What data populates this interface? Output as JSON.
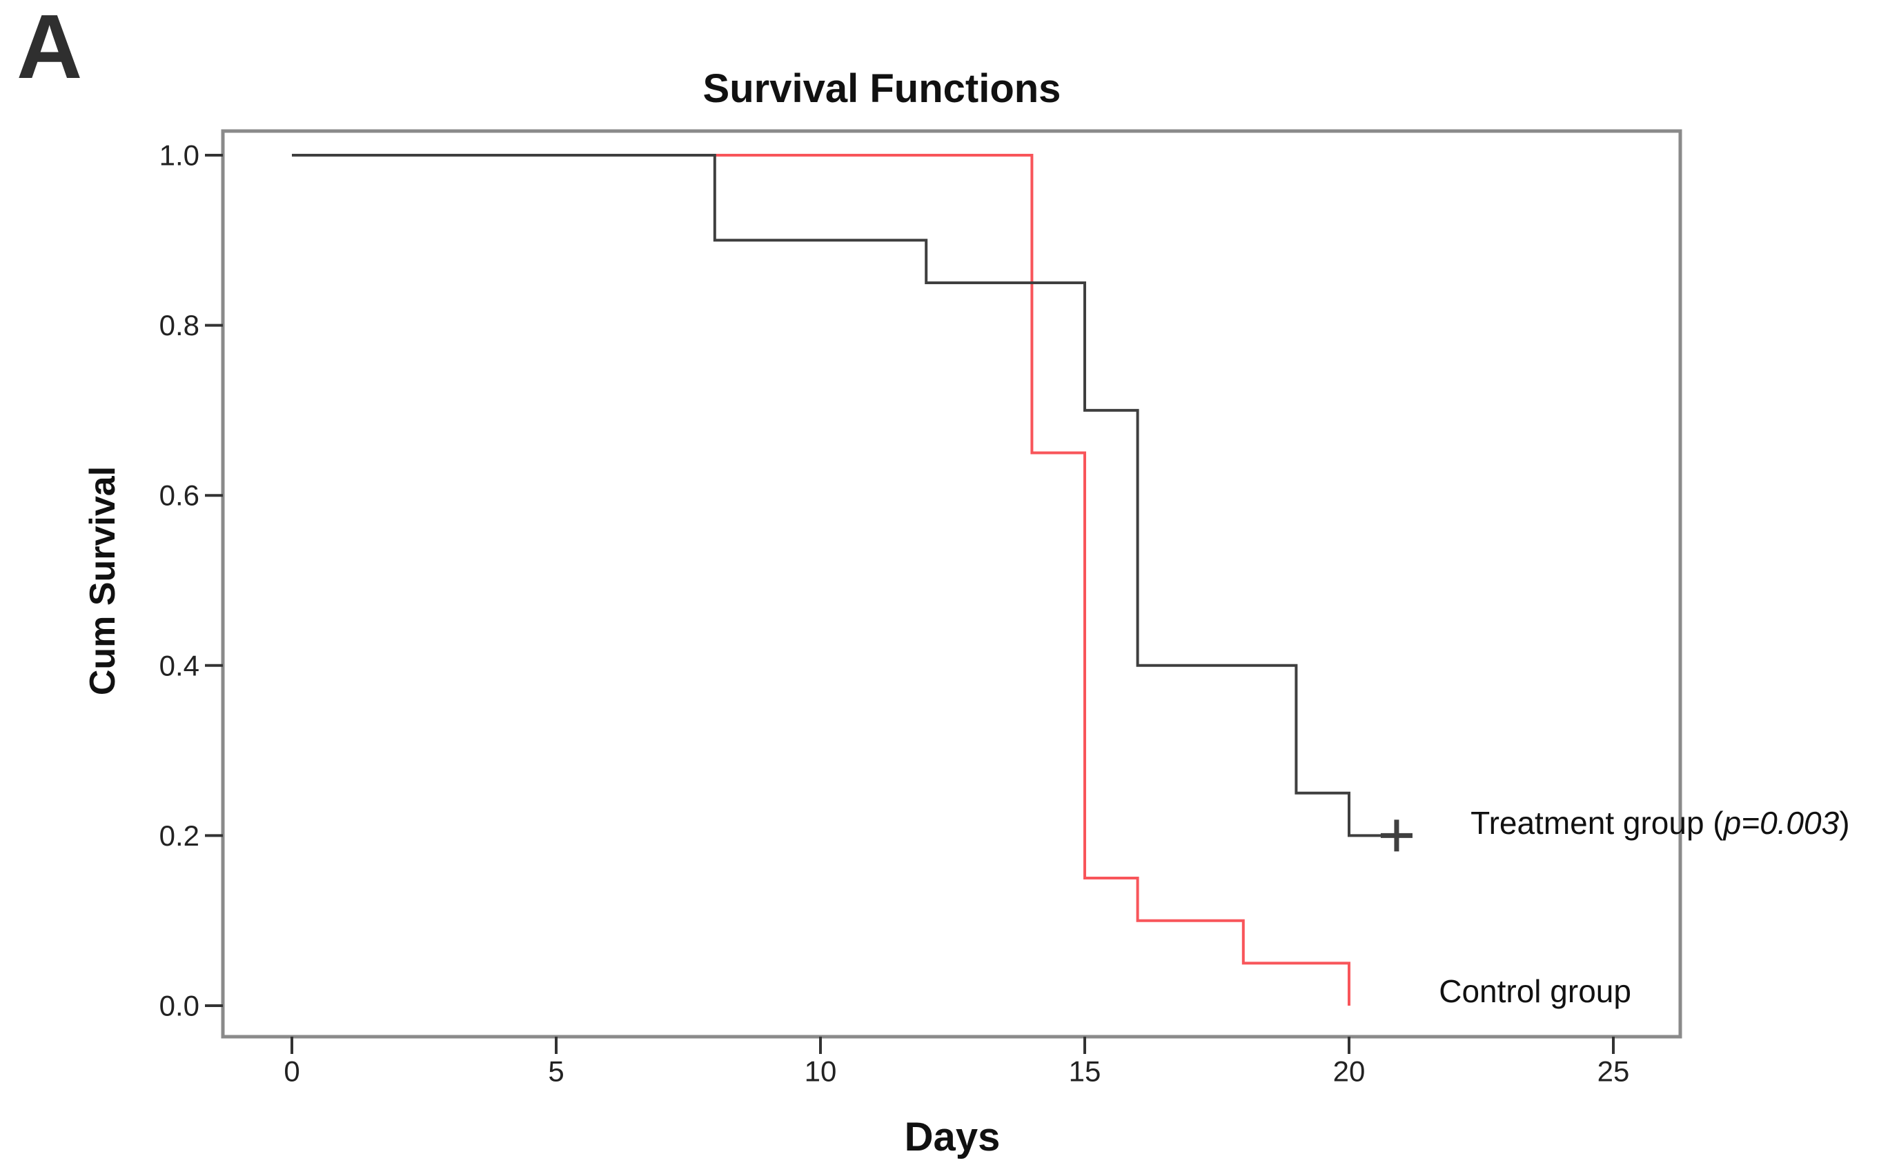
{
  "figure": {
    "panel_label": "A"
  },
  "chart_data": {
    "type": "line",
    "subtype": "kaplan-meier-step",
    "title": "Survival Functions",
    "xlabel": "Days",
    "ylabel": "Cum Survival",
    "xlim": [
      0,
      25
    ],
    "ylim": [
      0.0,
      1.0
    ],
    "x_ticks": [
      0,
      5,
      10,
      15,
      20,
      25
    ],
    "y_ticks": [
      "0.0",
      "0.2",
      "0.4",
      "0.6",
      "0.8",
      "1.0"
    ],
    "grid": false,
    "legend_position": "annotations-right",
    "colors": {
      "treatment": "#3f3f3f",
      "control": "#f8555a",
      "frame": "#8a8a8a",
      "tick": "#333333",
      "text": "#111111"
    },
    "series": [
      {
        "name": "Control group",
        "key": "control",
        "color": "#f8555a",
        "points": [
          [
            0,
            1.0
          ],
          [
            14,
            1.0
          ],
          [
            14,
            0.65
          ],
          [
            15,
            0.65
          ],
          [
            15,
            0.15
          ],
          [
            16,
            0.15
          ],
          [
            16,
            0.1
          ],
          [
            18,
            0.1
          ],
          [
            18,
            0.05
          ],
          [
            20,
            0.05
          ],
          [
            20,
            0.0
          ]
        ],
        "censored": []
      },
      {
        "name": "Treatment group",
        "key": "treatment",
        "color": "#3f3f3f",
        "points": [
          [
            0,
            1.0
          ],
          [
            8,
            1.0
          ],
          [
            8,
            0.9
          ],
          [
            12,
            0.9
          ],
          [
            12,
            0.85
          ],
          [
            15,
            0.85
          ],
          [
            15,
            0.7
          ],
          [
            16,
            0.7
          ],
          [
            16,
            0.4
          ],
          [
            19,
            0.4
          ],
          [
            19,
            0.25
          ],
          [
            20,
            0.25
          ],
          [
            20,
            0.2
          ],
          [
            20.9,
            0.2
          ]
        ],
        "censored": [
          [
            20.9,
            0.2
          ]
        ]
      }
    ],
    "annotations": [
      {
        "id": "treatment",
        "prefix": "Treatment group (",
        "italic": "p=0.003",
        "suffix": ")",
        "x": 22.3,
        "y": 0.215
      },
      {
        "id": "control",
        "text": "Control group",
        "x": 21.7,
        "y": 0.017
      }
    ]
  }
}
